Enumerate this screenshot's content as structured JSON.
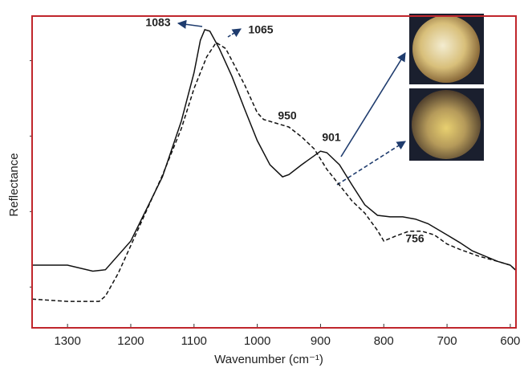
{
  "chart_data": {
    "type": "line",
    "x_label": "Wavenumber (cm⁻¹)",
    "y_label": "Reflectance",
    "xlim": [
      1356,
      591
    ],
    "xticks": [
      1300,
      1200,
      1100,
      1000,
      900,
      800,
      700,
      600
    ],
    "ylim": [
      0.46,
      4.59
    ],
    "yticks": [
      1,
      2,
      3,
      4
    ],
    "series": [
      {
        "color": "#111111",
        "style": "solid",
        "x": [
          1356,
          1300,
          1260,
          1240,
          1200,
          1150,
          1120,
          1100,
          1090,
          1083,
          1075,
          1060,
          1040,
          1020,
          1000,
          980,
          960,
          950,
          930,
          910,
          900,
          890,
          870,
          850,
          830,
          810,
          790,
          770,
          750,
          730,
          700,
          680,
          660,
          640,
          620,
          600,
          591
        ],
        "values": [
          1.29,
          1.29,
          1.21,
          1.23,
          1.61,
          2.46,
          3.2,
          3.84,
          4.27,
          4.41,
          4.39,
          4.16,
          3.79,
          3.36,
          2.94,
          2.62,
          2.46,
          2.49,
          2.62,
          2.74,
          2.8,
          2.78,
          2.62,
          2.35,
          2.09,
          1.95,
          1.93,
          1.93,
          1.9,
          1.84,
          1.69,
          1.59,
          1.48,
          1.41,
          1.34,
          1.29,
          1.22
        ]
      },
      {
        "color": "#111111",
        "style": "dashed",
        "x": [
          1356,
          1300,
          1250,
          1240,
          1220,
          1200,
          1150,
          1120,
          1100,
          1080,
          1065,
          1050,
          1040,
          1020,
          1000,
          990,
          970,
          950,
          930,
          910,
          890,
          870,
          850,
          830,
          810,
          800,
          780,
          760,
          740,
          720,
          700,
          680,
          650,
          620,
          600,
          591
        ],
        "values": [
          0.84,
          0.81,
          0.81,
          0.88,
          1.18,
          1.55,
          2.48,
          3.1,
          3.63,
          4.05,
          4.24,
          4.16,
          4.0,
          3.68,
          3.31,
          3.22,
          3.17,
          3.12,
          2.99,
          2.83,
          2.56,
          2.35,
          2.14,
          1.98,
          1.75,
          1.61,
          1.68,
          1.74,
          1.74,
          1.69,
          1.57,
          1.5,
          1.41,
          1.34,
          1.29,
          1.22
        ]
      }
    ],
    "annotations": [
      "1083",
      "1065",
      "950",
      "901",
      "756"
    ],
    "frame_color": "#c0262c"
  }
}
